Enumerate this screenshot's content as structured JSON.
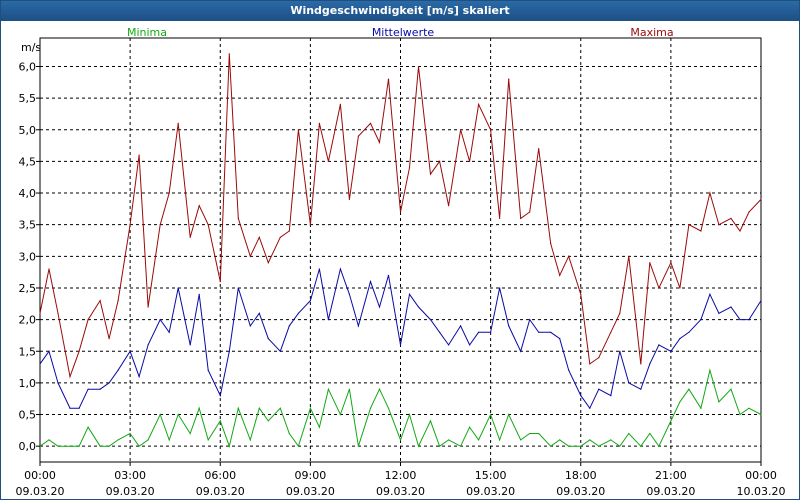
{
  "window": {
    "title": "Windgeschwindigkeit [m/s] skaliert"
  },
  "colors": {
    "minima": "#13a813",
    "mean": "#0a0aa6",
    "maxima": "#9b0a0a",
    "titlebar": "#1f5a96",
    "grid": "#000000"
  },
  "chart_data": {
    "type": "line",
    "title": "Windgeschwindigkeit [m/s] skaliert",
    "ylabel": "m/s",
    "xlabel": "",
    "ylim": [
      -0.25,
      6.45
    ],
    "xlim": [
      0,
      24
    ],
    "grid": true,
    "yticks": [
      {
        "value": 0.0,
        "label": "0,0"
      },
      {
        "value": 0.5,
        "label": "0,5"
      },
      {
        "value": 1.0,
        "label": "1,0"
      },
      {
        "value": 1.5,
        "label": "1,5"
      },
      {
        "value": 2.0,
        "label": "2,0"
      },
      {
        "value": 2.5,
        "label": "2,5"
      },
      {
        "value": 3.0,
        "label": "3,0"
      },
      {
        "value": 3.5,
        "label": "3,5"
      },
      {
        "value": 4.0,
        "label": "4,0"
      },
      {
        "value": 4.5,
        "label": "4,5"
      },
      {
        "value": 5.0,
        "label": "5,0"
      },
      {
        "value": 5.5,
        "label": "5,5"
      },
      {
        "value": 6.0,
        "label": "6,0"
      }
    ],
    "xticks": [
      {
        "value": 0,
        "time": "00:00",
        "date": "09.03.20"
      },
      {
        "value": 3,
        "time": "03:00",
        "date": "09.03.20"
      },
      {
        "value": 6,
        "time": "06:00",
        "date": "09.03.20"
      },
      {
        "value": 9,
        "time": "09:00",
        "date": "09.03.20"
      },
      {
        "value": 12,
        "time": "12:00",
        "date": "09.03.20"
      },
      {
        "value": 15,
        "time": "15:00",
        "date": "09.03.20"
      },
      {
        "value": 18,
        "time": "18:00",
        "date": "09.03.20"
      },
      {
        "value": 21,
        "time": "21:00",
        "date": "09.03.20"
      },
      {
        "value": 24,
        "time": "00:00",
        "date": "10.03.20"
      }
    ],
    "series": [
      {
        "name": "Minima",
        "key": "minima",
        "x": [
          0,
          0.3,
          0.6,
          1,
          1.3,
          1.6,
          2,
          2.3,
          2.6,
          3,
          3.3,
          3.6,
          4,
          4.3,
          4.6,
          5,
          5.3,
          5.6,
          6,
          6.3,
          6.6,
          7,
          7.3,
          7.6,
          8,
          8.3,
          8.6,
          9,
          9.3,
          9.6,
          10,
          10.3,
          10.6,
          11,
          11.3,
          11.6,
          12,
          12.3,
          12.6,
          13,
          13.3,
          13.6,
          14,
          14.3,
          14.6,
          15,
          15.3,
          15.6,
          16,
          16.3,
          16.6,
          17,
          17.3,
          17.6,
          18,
          18.3,
          18.6,
          19,
          19.3,
          19.6,
          20,
          20.3,
          20.6,
          21,
          21.3,
          21.6,
          22,
          22.3,
          22.6,
          23,
          23.3,
          23.6,
          24
        ],
        "values": [
          0.0,
          0.1,
          0.0,
          0.0,
          0.0,
          0.3,
          0.0,
          0.0,
          0.1,
          0.2,
          0.0,
          0.1,
          0.5,
          0.1,
          0.5,
          0.2,
          0.6,
          0.1,
          0.4,
          0.0,
          0.6,
          0.1,
          0.6,
          0.4,
          0.6,
          0.2,
          0.0,
          0.6,
          0.3,
          0.9,
          0.5,
          0.9,
          0.0,
          0.6,
          0.9,
          0.6,
          0.1,
          0.5,
          0.0,
          0.4,
          0.0,
          0.1,
          0.0,
          0.3,
          0.1,
          0.5,
          0.1,
          0.5,
          0.1,
          0.2,
          0.2,
          0.0,
          0.1,
          0.0,
          0.0,
          0.1,
          0.0,
          0.1,
          0.0,
          0.2,
          0.0,
          0.2,
          0.0,
          0.4,
          0.7,
          0.9,
          0.6,
          1.2,
          0.7,
          0.9,
          0.5,
          0.6,
          0.5
        ]
      },
      {
        "name": "Mittelwerte",
        "key": "mean",
        "x": [
          0,
          0.3,
          0.6,
          1,
          1.3,
          1.6,
          2,
          2.3,
          2.6,
          3,
          3.3,
          3.6,
          4,
          4.3,
          4.6,
          5,
          5.3,
          5.6,
          6,
          6.3,
          6.6,
          7,
          7.3,
          7.6,
          8,
          8.3,
          8.6,
          9,
          9.3,
          9.6,
          10,
          10.3,
          10.6,
          11,
          11.3,
          11.6,
          12,
          12.3,
          12.6,
          13,
          13.3,
          13.6,
          14,
          14.3,
          14.6,
          15,
          15.3,
          15.6,
          16,
          16.3,
          16.6,
          17,
          17.3,
          17.6,
          18,
          18.3,
          18.6,
          19,
          19.3,
          19.6,
          20,
          20.3,
          20.6,
          21,
          21.3,
          21.6,
          22,
          22.3,
          22.6,
          23,
          23.3,
          23.6,
          24
        ],
        "values": [
          1.3,
          1.5,
          1.0,
          0.6,
          0.6,
          0.9,
          0.9,
          1.0,
          1.2,
          1.5,
          1.1,
          1.6,
          2.0,
          1.8,
          2.5,
          1.6,
          2.4,
          1.2,
          0.8,
          1.5,
          2.5,
          1.9,
          2.1,
          1.7,
          1.5,
          1.9,
          2.1,
          2.3,
          2.8,
          2.0,
          2.8,
          2.4,
          1.9,
          2.6,
          2.2,
          2.7,
          1.6,
          2.4,
          2.2,
          2.0,
          1.8,
          1.6,
          1.9,
          1.6,
          1.8,
          1.8,
          2.5,
          1.9,
          1.5,
          2.0,
          1.8,
          1.8,
          1.7,
          1.2,
          0.8,
          0.6,
          0.9,
          0.8,
          1.5,
          1.0,
          0.9,
          1.3,
          1.6,
          1.5,
          1.7,
          1.8,
          2.0,
          2.4,
          2.1,
          2.2,
          2.0,
          2.0,
          2.3
        ]
      },
      {
        "name": "Maxima",
        "key": "maxima",
        "x": [
          0,
          0.3,
          0.6,
          1,
          1.3,
          1.6,
          2,
          2.3,
          2.6,
          3,
          3.3,
          3.6,
          4,
          4.3,
          4.6,
          5,
          5.3,
          5.6,
          6,
          6.3,
          6.6,
          7,
          7.3,
          7.6,
          8,
          8.3,
          8.6,
          9,
          9.3,
          9.6,
          10,
          10.3,
          10.6,
          11,
          11.3,
          11.6,
          12,
          12.3,
          12.6,
          13,
          13.3,
          13.6,
          14,
          14.3,
          14.6,
          15,
          15.3,
          15.6,
          16,
          16.3,
          16.6,
          17,
          17.3,
          17.6,
          18,
          18.3,
          18.6,
          19,
          19.3,
          19.6,
          20,
          20.3,
          20.6,
          21,
          21.3,
          21.6,
          22,
          22.3,
          22.6,
          23,
          23.3,
          23.6,
          24
        ],
        "values": [
          2.1,
          2.8,
          2.1,
          1.1,
          1.5,
          2.0,
          2.3,
          1.7,
          2.3,
          3.5,
          4.6,
          2.2,
          3.5,
          4.0,
          5.1,
          3.3,
          3.8,
          3.5,
          2.6,
          6.2,
          3.6,
          3.0,
          3.3,
          2.9,
          3.3,
          3.4,
          5.0,
          3.5,
          5.1,
          4.5,
          5.4,
          3.9,
          4.9,
          5.1,
          4.8,
          5.8,
          3.7,
          4.4,
          6.0,
          4.3,
          4.5,
          3.8,
          5.0,
          4.5,
          5.4,
          5.0,
          3.6,
          5.8,
          3.6,
          3.7,
          4.7,
          3.2,
          2.7,
          3.0,
          2.4,
          1.3,
          1.4,
          1.8,
          2.1,
          3.0,
          1.3,
          2.9,
          2.5,
          2.9,
          2.5,
          3.5,
          3.4,
          4.0,
          3.5,
          3.6,
          3.4,
          3.7,
          3.9
        ]
      }
    ]
  }
}
